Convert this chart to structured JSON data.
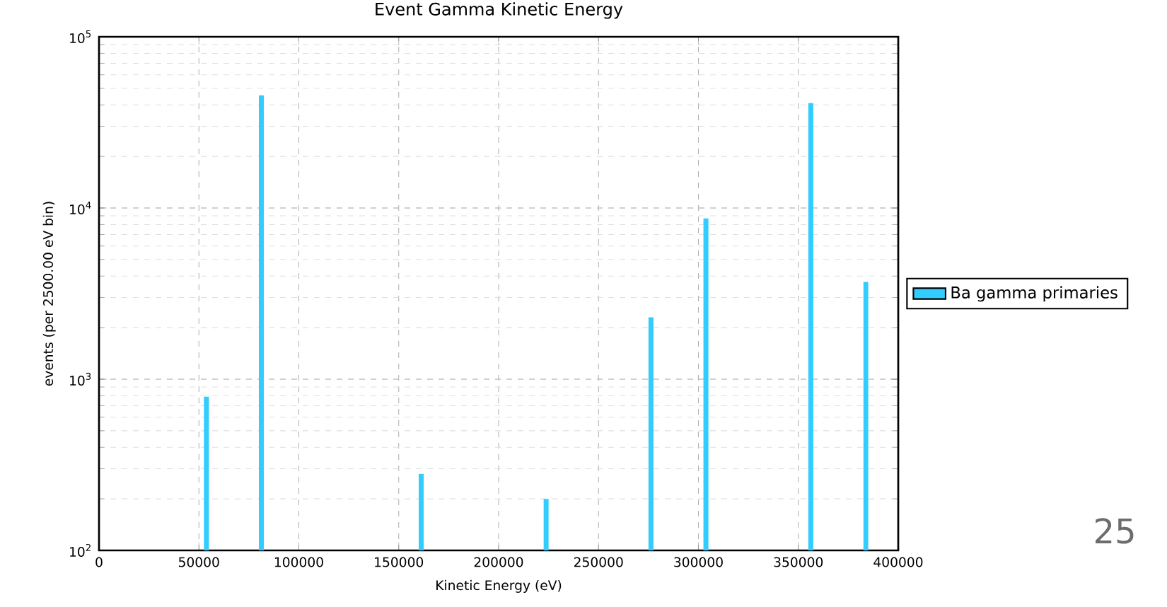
{
  "chart_data": {
    "type": "histogram",
    "title": "Event Gamma Kinetic Energy",
    "xlabel": "Kinetic Energy (eV)",
    "ylabel": "events (per 2500.00 eV bin)",
    "bins": [
      0,
      2500,
      5000,
      7500,
      10000,
      12500,
      15000,
      17500,
      20000,
      22500,
      25000,
      27500,
      30000,
      32500,
      35000,
      37500,
      40000,
      42500,
      45000,
      47500,
      50000,
      52500,
      55000,
      57500,
      60000,
      62500,
      65000,
      67500,
      70000,
      72500,
      75000,
      77500,
      80000,
      82500,
      85000,
      87500,
      90000,
      92500,
      95000,
      97500,
      100000,
      102500,
      105000,
      107500,
      110000,
      112500,
      115000,
      117500,
      120000,
      122500,
      125000,
      127500,
      130000,
      132500,
      135000,
      137500,
      140000,
      142500,
      145000,
      147500,
      150000,
      152500,
      155000,
      157500,
      160000,
      162500,
      165000,
      167500,
      170000,
      172500,
      175000,
      177500,
      180000,
      182500,
      185000,
      187500,
      190000,
      192500,
      195000,
      197500,
      200000,
      202500,
      205000,
      207500,
      210000,
      212500,
      215000,
      217500,
      220000,
      222500,
      225000,
      227500,
      230000,
      232500,
      235000,
      237500,
      240000,
      242500,
      245000,
      247500,
      250000,
      252500,
      255000,
      257500,
      260000,
      262500,
      265000,
      267500,
      270000,
      272500,
      275000,
      277500,
      280000,
      282500,
      285000,
      287500,
      290000,
      292500,
      295000,
      297500,
      300000,
      302500,
      305000,
      307500,
      310000,
      312500,
      315000,
      317500,
      320000,
      322500,
      325000,
      327500,
      330000,
      332500,
      335000,
      337500,
      340000,
      342500,
      345000,
      347500,
      350000,
      352500,
      355000,
      357500,
      360000,
      362500,
      365000,
      367500,
      370000,
      372500,
      375000,
      377500,
      380000,
      382500,
      385000,
      387500,
      390000,
      392500,
      395000,
      397500,
      400000
    ],
    "series": [
      {
        "name": "Ba gamma primaries",
        "color": "#33ccff",
        "values": [
          null,
          null,
          null,
          null,
          null,
          null,
          null,
          null,
          null,
          null,
          null,
          null,
          null,
          null,
          null,
          null,
          null,
          null,
          null,
          null,
          null,
          790,
          null,
          null,
          null,
          null,
          null,
          null,
          null,
          null,
          null,
          null,
          45500,
          null,
          null,
          null,
          null,
          null,
          null,
          null,
          null,
          null,
          null,
          null,
          null,
          null,
          null,
          null,
          null,
          null,
          null,
          null,
          null,
          null,
          null,
          null,
          null,
          null,
          null,
          null,
          null,
          null,
          null,
          null,
          280,
          null,
          null,
          null,
          null,
          null,
          null,
          null,
          null,
          null,
          null,
          null,
          null,
          null,
          null,
          null,
          null,
          null,
          null,
          null,
          null,
          null,
          null,
          null,
          null,
          200,
          null,
          null,
          null,
          null,
          null,
          null,
          null,
          null,
          null,
          null,
          null,
          null,
          null,
          null,
          null,
          null,
          null,
          null,
          null,
          null,
          2300,
          null,
          null,
          null,
          null,
          null,
          null,
          null,
          null,
          null,
          null,
          8700,
          null,
          null,
          null,
          null,
          null,
          null,
          null,
          null,
          null,
          null,
          null,
          null,
          null,
          null,
          null,
          null,
          null,
          null,
          null,
          null,
          41000,
          null,
          null,
          null,
          null,
          null,
          null,
          null,
          null,
          null,
          null,
          3700,
          null,
          null,
          null,
          null,
          null,
          null
        ]
      }
    ],
    "xlim": [
      0,
      400000
    ],
    "xticks": [
      0,
      50000,
      100000,
      150000,
      200000,
      250000,
      300000,
      350000,
      400000
    ],
    "ylim": [
      100,
      100000
    ],
    "yticks": [
      {
        "value": 100,
        "label": "10$^{2}$"
      },
      {
        "value": 1000,
        "label": "10$^{3}$"
      },
      {
        "value": 10000,
        "label": "10$^{4}$"
      },
      {
        "value": 100000,
        "label": "10$^{5}$"
      }
    ],
    "log": "y",
    "grid": true,
    "legend": "right",
    "annotations": [
      "25"
    ]
  }
}
